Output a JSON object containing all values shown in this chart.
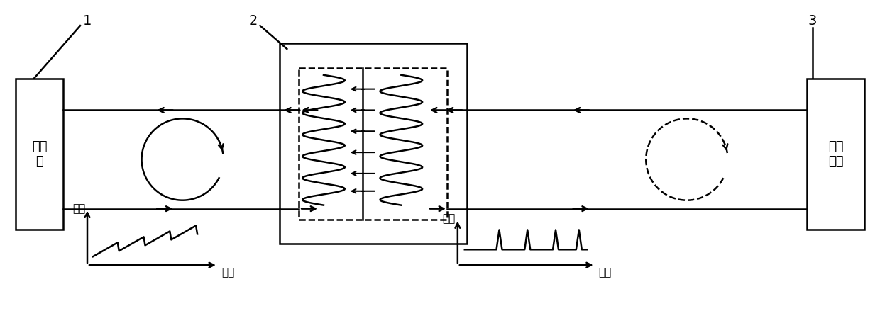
{
  "bg_color": "#ffffff",
  "line_color": "#000000",
  "fig_width": 12.4,
  "fig_height": 4.63,
  "label_1": "1",
  "label_2": "2",
  "label_3": "3",
  "text_chiller": "冷水\n机",
  "text_exposure": "曝光\n单元",
  "text_temp": "温度",
  "text_time": "时间"
}
